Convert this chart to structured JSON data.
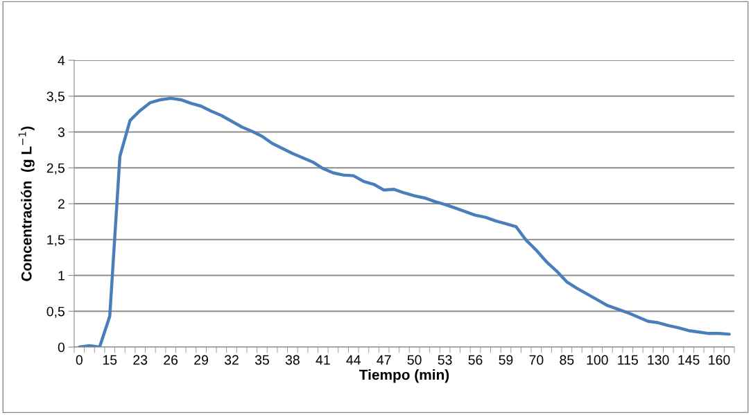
{
  "chart_data": {
    "type": "line",
    "xlabel": "Tiempo (min)",
    "ylabel": "Concentración  (g L$^{−1}$)",
    "categories": [
      "0",
      null,
      null,
      "15",
      null,
      null,
      "23",
      null,
      null,
      "26",
      null,
      null,
      "29",
      null,
      null,
      "32",
      null,
      null,
      "35",
      null,
      null,
      "38",
      null,
      null,
      "41",
      null,
      null,
      "44",
      null,
      null,
      "47",
      null,
      null,
      "50",
      null,
      null,
      "53",
      null,
      null,
      "56",
      null,
      null,
      "59",
      null,
      null,
      "70",
      null,
      null,
      "85",
      null,
      null,
      "100",
      null,
      null,
      "115",
      null,
      null,
      "130",
      null,
      null,
      "145",
      null,
      null,
      "160",
      null
    ],
    "series": [
      {
        "color": "#4a7ebb",
        "values": [
          0,
          0.02,
          0,
          0.43,
          2.66,
          3.16,
          3.3,
          3.41,
          3.45,
          3.47,
          3.45,
          3.4,
          3.36,
          3.29,
          3.23,
          3.15,
          3.07,
          3.01,
          2.94,
          2.84,
          2.77,
          2.7,
          2.64,
          2.58,
          2.49,
          2.43,
          2.4,
          2.39,
          2.31,
          2.27,
          2.19,
          2.2,
          2.15,
          2.11,
          2.08,
          2.03,
          1.99,
          1.94,
          1.89,
          1.84,
          1.81,
          1.76,
          1.72,
          1.68,
          1.49,
          1.35,
          1.19,
          1.06,
          0.91,
          0.82,
          0.74,
          0.66,
          0.58,
          0.53,
          0.48,
          0.42,
          0.36,
          0.34,
          0.3,
          0.27,
          0.23,
          0.21,
          0.19,
          0.19,
          0.18
        ]
      }
    ],
    "ylim": [
      0,
      4
    ],
    "yticks": [
      0,
      {
        "value": 0.5,
        "label": "0,5"
      },
      1,
      {
        "value": 1.5,
        "label": "1,5"
      },
      2,
      {
        "value": 2.5,
        "label": "2,5"
      },
      3,
      {
        "value": 3.5,
        "label": "3,5"
      },
      4
    ],
    "grid": "y",
    "marker": "none",
    "line_style": "solid"
  }
}
